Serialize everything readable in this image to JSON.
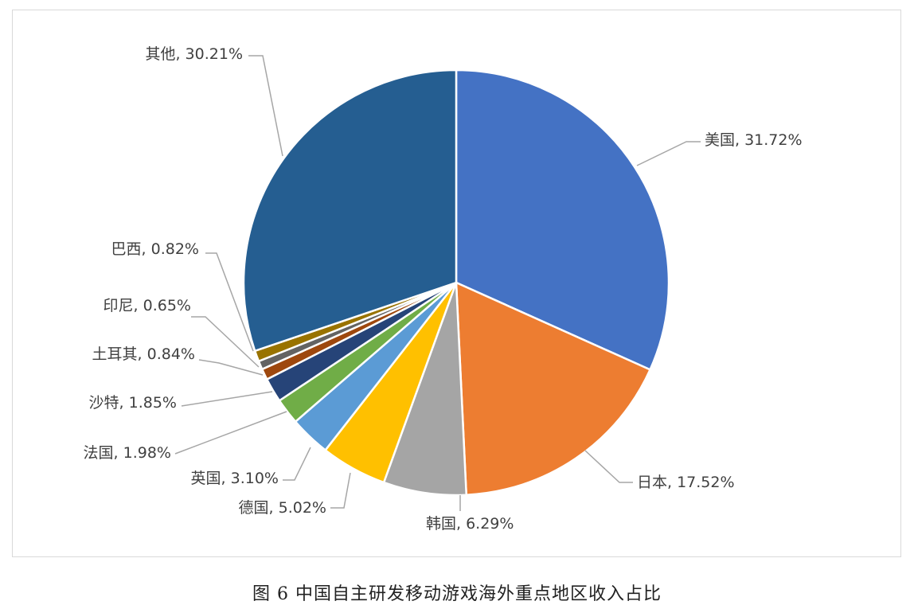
{
  "caption": "图 6 中国自主研发移动游戏海外重点地区收入占比",
  "chart_data": {
    "type": "pie",
    "title": "",
    "start_angle": "12 o'clock, clockwise",
    "legend": "none",
    "slices": [
      {
        "label": "美国",
        "value": 31.72,
        "display": "美国, 31.72%",
        "color": "#4472C4"
      },
      {
        "label": "日本",
        "value": 17.52,
        "display": "日本, 17.52%",
        "color": "#ED7D31"
      },
      {
        "label": "韩国",
        "value": 6.29,
        "display": "韩国, 6.29%",
        "color": "#A5A5A5"
      },
      {
        "label": "德国",
        "value": 5.02,
        "display": "德国, 5.02%",
        "color": "#FFC000"
      },
      {
        "label": "英国",
        "value": 3.1,
        "display": "英国, 3.10%",
        "color": "#5B9BD5"
      },
      {
        "label": "法国",
        "value": 1.98,
        "display": "法国, 1.98%",
        "color": "#70AD47"
      },
      {
        "label": "沙特",
        "value": 1.85,
        "display": "沙特, 1.85%",
        "color": "#264478"
      },
      {
        "label": "土耳其",
        "value": 0.84,
        "display": "土耳其, 0.84%",
        "color": "#9E480E"
      },
      {
        "label": "印尼",
        "value": 0.65,
        "display": "印尼, 0.65%",
        "color": "#636363"
      },
      {
        "label": "巴西",
        "value": 0.82,
        "display": "巴西, 0.82%",
        "color": "#997300"
      },
      {
        "label": "其他",
        "value": 30.21,
        "display": "其他, 30.21%",
        "color": "#255E91"
      }
    ]
  }
}
